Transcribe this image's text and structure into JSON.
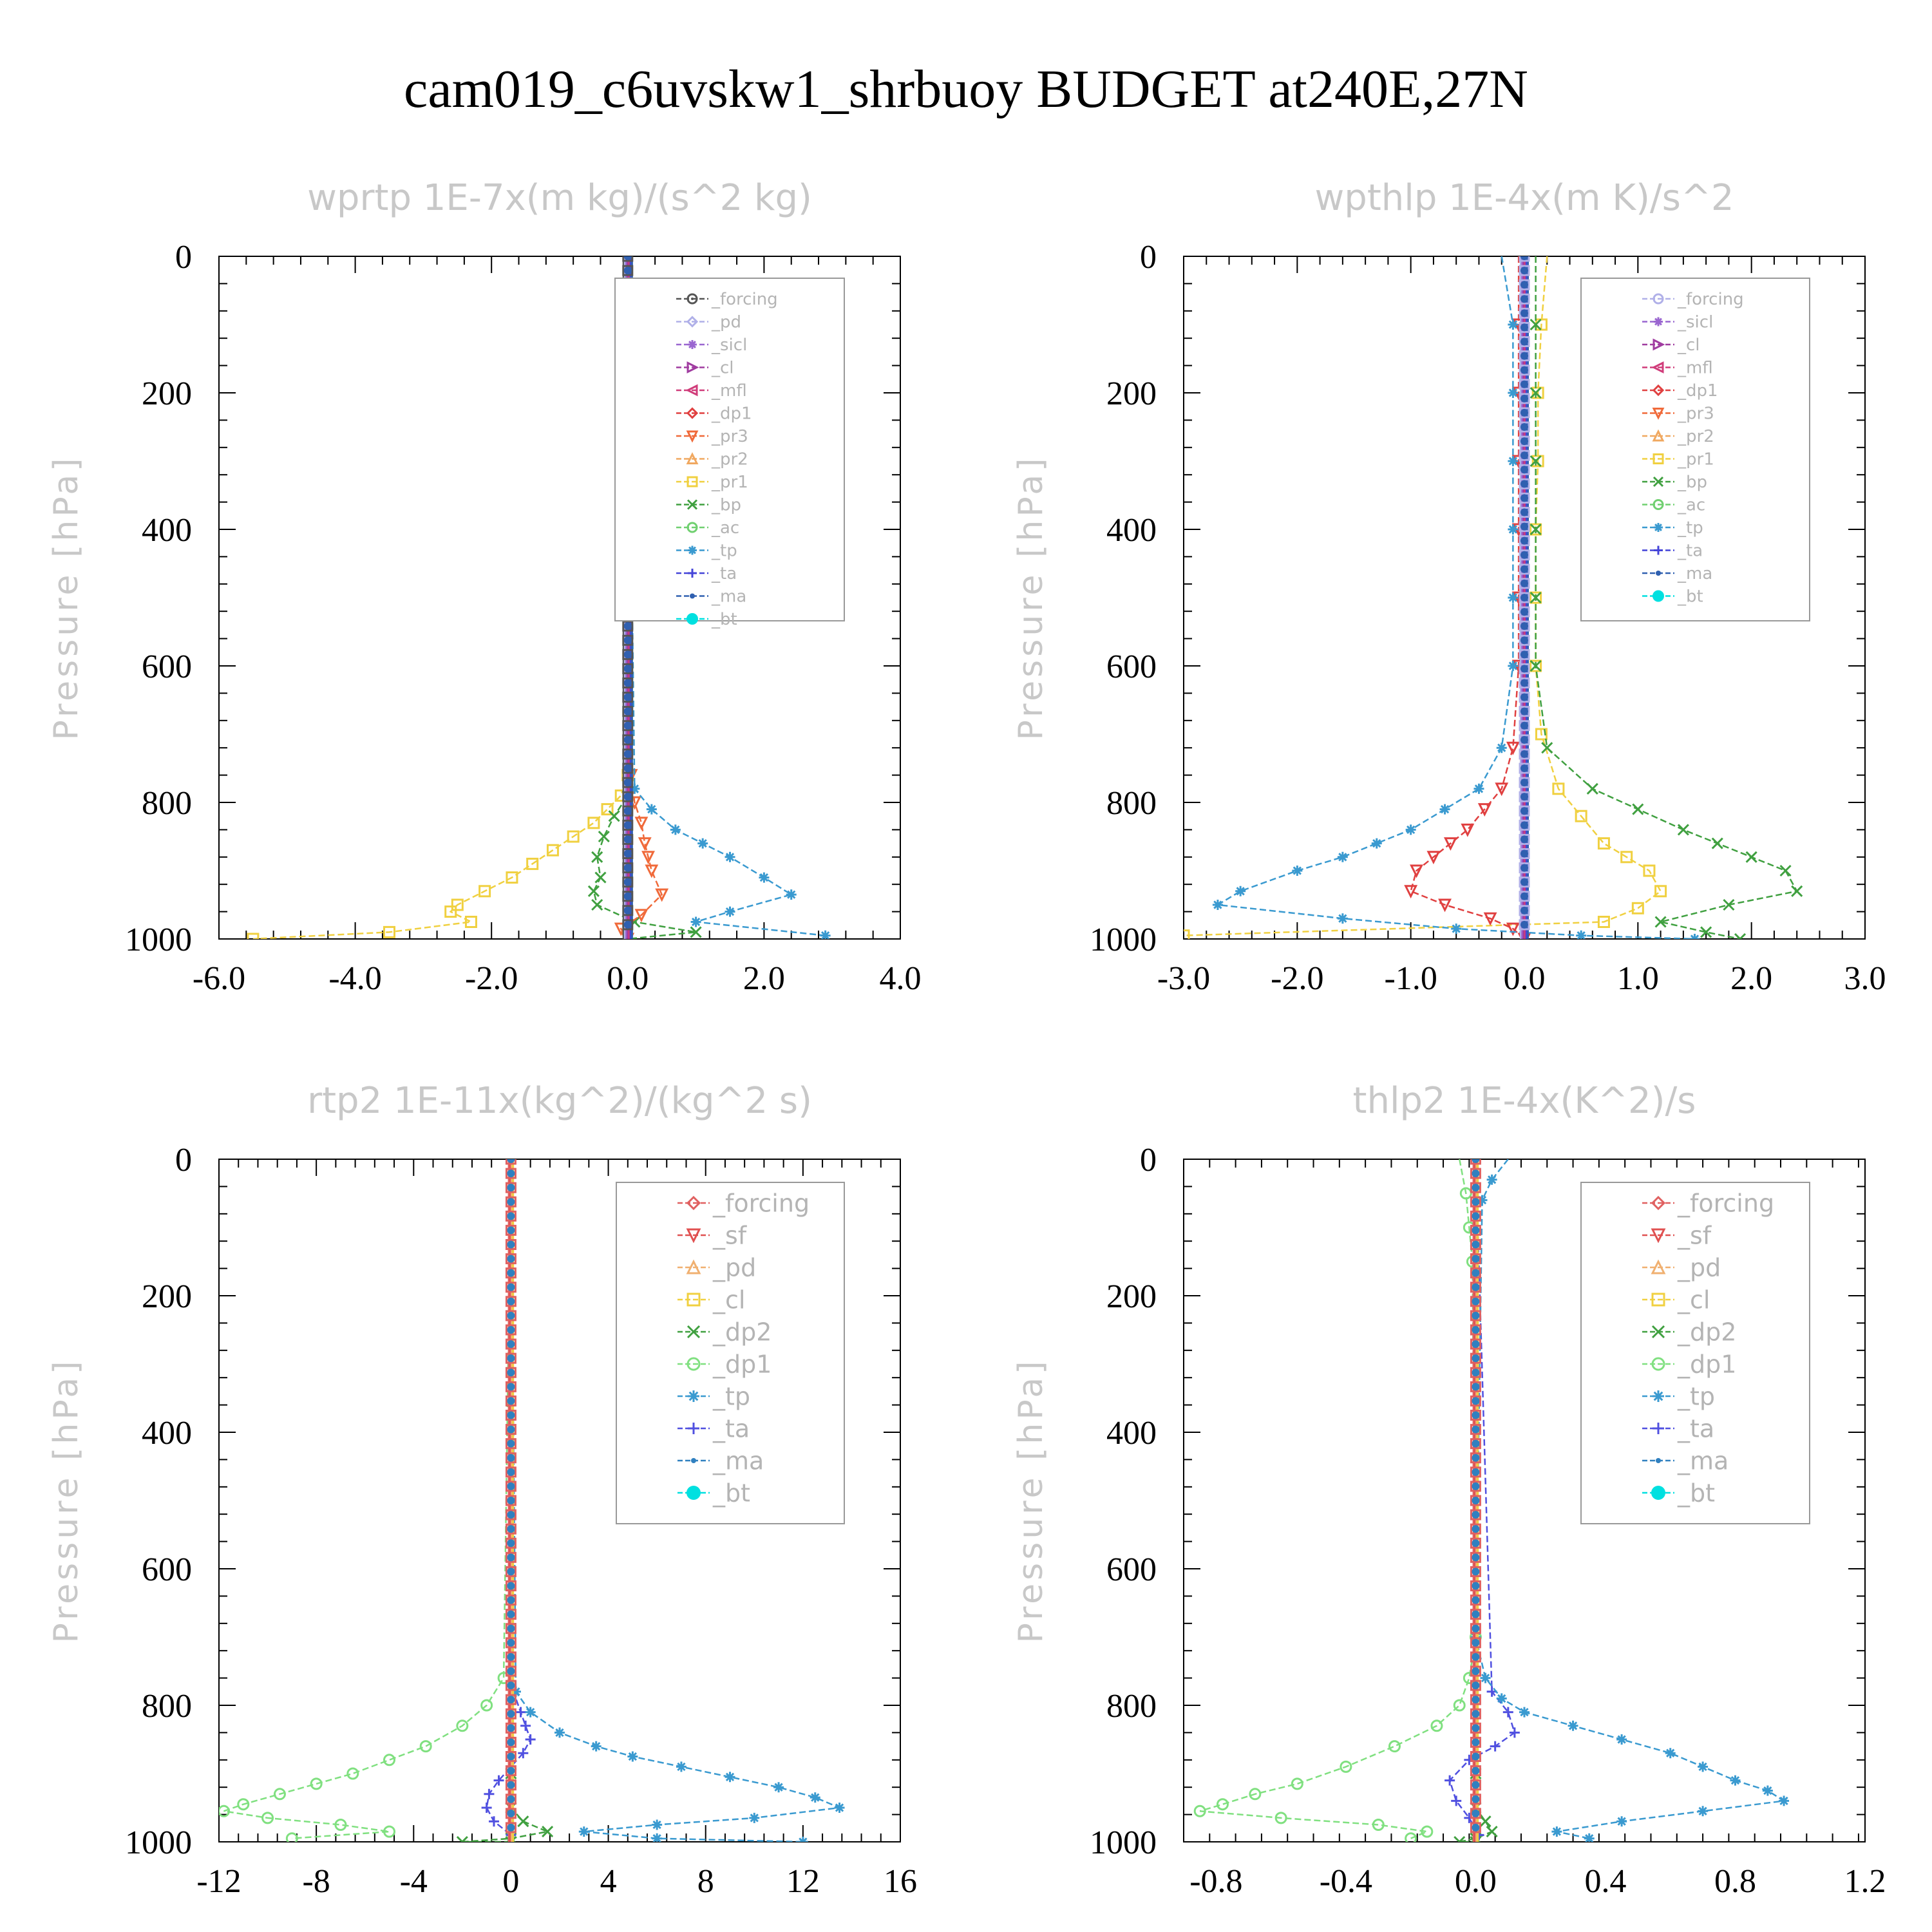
{
  "figure_title": "cam019_c6uvskw1_shrbuoy  BUDGET at240E,27N",
  "colors": {
    "forcing": "#555555",
    "pd": "#b0b0e8",
    "sicl": "#9a66d0",
    "cl": "#a03ca0",
    "mfl": "#d03c7a",
    "dp1": "#e04040",
    "pr3": "#f06a3a",
    "pr2": "#f0a860",
    "pr1": "#f0d040",
    "bp": "#40a040",
    "ac": "#70d070",
    "tp": "#3a9ad0",
    "ta": "#4444d8",
    "ma": "#3060b0",
    "bt": "#00e0e0",
    "forcing2": "#e06060",
    "sf": "#e05050",
    "pd2": "#f0b070",
    "cl2": "#f0d040",
    "dp2": "#40a040",
    "dp1b": "#80e080",
    "tp2": "#3a9ad0",
    "ta2": "#5050e0",
    "ma2": "#3080c0"
  },
  "chart_data": [
    {
      "type": "line",
      "title": "wprtp  1E-7x(m kg)/(s^2 kg)",
      "ylabel": "Pressure [hPa]",
      "xlim": [
        -6.0,
        4.0
      ],
      "ylim": [
        1000,
        0
      ],
      "xticks": [
        "-6.0",
        "-4.0",
        "-2.0",
        "0.0",
        "2.0",
        "4.0"
      ],
      "yticks": [
        "0",
        "200",
        "400",
        "600",
        "800",
        "1000"
      ],
      "legend_position": "top-right",
      "legend": [
        {
          "label": "_forcing",
          "color": "forcing",
          "marker": "circle-dot"
        },
        {
          "label": "_pd",
          "color": "pd",
          "marker": "diamond"
        },
        {
          "label": "_sicl",
          "color": "sicl",
          "marker": "star"
        },
        {
          "label": "_cl",
          "color": "cl",
          "marker": "tri-right"
        },
        {
          "label": "_mfl",
          "color": "mfl",
          "marker": "tri-left"
        },
        {
          "label": "_dp1",
          "color": "dp1",
          "marker": "diamond"
        },
        {
          "label": "_pr3",
          "color": "pr3",
          "marker": "tri-down"
        },
        {
          "label": "_pr2",
          "color": "pr2",
          "marker": "tri-up"
        },
        {
          "label": "_pr1",
          "color": "pr1",
          "marker": "square"
        },
        {
          "label": "_bp",
          "color": "bp",
          "marker": "x"
        },
        {
          "label": "_ac",
          "color": "ac",
          "marker": "circle"
        },
        {
          "label": "_tp",
          "color": "tp",
          "marker": "asterisk"
        },
        {
          "label": "_ta",
          "color": "ta",
          "marker": "plus"
        },
        {
          "label": "_ma",
          "color": "ma",
          "marker": "dot"
        },
        {
          "label": "_bt",
          "color": "bt",
          "marker": "filled-circle"
        }
      ],
      "series": [
        {
          "color": "pr1",
          "marker": "square",
          "x": [
            0,
            0,
            -0.1,
            -0.3,
            -0.5,
            -0.8,
            -1.1,
            -1.4,
            -1.7,
            -2.1,
            -2.5,
            -2.6,
            -2.3,
            -3.5,
            -5.5
          ],
          "y": [
            0,
            760,
            790,
            810,
            830,
            850,
            870,
            890,
            910,
            930,
            950,
            960,
            975,
            990,
            1000
          ]
        },
        {
          "color": "bp",
          "marker": "x",
          "x": [
            0,
            0,
            -0.2,
            -0.35,
            -0.45,
            -0.4,
            -0.5,
            -0.45,
            0.1,
            1.0,
            0
          ],
          "y": [
            0,
            790,
            820,
            850,
            880,
            910,
            930,
            950,
            975,
            990,
            1000
          ]
        },
        {
          "color": "pr3",
          "marker": "tri-down",
          "x": [
            0,
            0.05,
            0.1,
            0.2,
            0.25,
            0.3,
            0.35,
            0.5,
            0.2,
            -0.1,
            0
          ],
          "y": [
            0,
            760,
            800,
            830,
            860,
            880,
            900,
            935,
            965,
            985,
            1000
          ]
        },
        {
          "color": "tp",
          "marker": "asterisk",
          "x": [
            0,
            0.1,
            0.35,
            0.7,
            1.1,
            1.5,
            2.0,
            2.4,
            1.5,
            1.0,
            2.9
          ],
          "y": [
            0,
            780,
            810,
            840,
            860,
            880,
            910,
            935,
            960,
            975,
            995
          ]
        }
      ],
      "zero_stack": {
        "colors": [
          "forcing",
          "pd",
          "sicl",
          "cl",
          "mfl",
          "ta",
          "ma"
        ],
        "marker_color": "ma"
      }
    },
    {
      "type": "line",
      "title": "wpthlp  1E-4x(m K)/s^2",
      "ylabel": "Pressure [hPa]",
      "xlim": [
        -3.0,
        3.0
      ],
      "ylim": [
        1000,
        0
      ],
      "xticks": [
        "-3.0",
        "-2.0",
        "-1.0",
        "0.0",
        "1.0",
        "2.0",
        "3.0"
      ],
      "yticks": [
        "0",
        "200",
        "400",
        "600",
        "800",
        "1000"
      ],
      "legend_position": "top-right",
      "legend": [
        {
          "label": "_forcing",
          "color": "pd",
          "marker": "circle"
        },
        {
          "label": "_sicl",
          "color": "sicl",
          "marker": "star"
        },
        {
          "label": "_cl",
          "color": "cl",
          "marker": "tri-right"
        },
        {
          "label": "_mfl",
          "color": "mfl",
          "marker": "tri-left"
        },
        {
          "label": "_dp1",
          "color": "dp1",
          "marker": "diamond"
        },
        {
          "label": "_pr3",
          "color": "pr3",
          "marker": "tri-down"
        },
        {
          "label": "_pr2",
          "color": "pr2",
          "marker": "tri-up"
        },
        {
          "label": "_pr1",
          "color": "pr1",
          "marker": "square"
        },
        {
          "label": "_bp",
          "color": "bp",
          "marker": "x"
        },
        {
          "label": "_ac",
          "color": "ac",
          "marker": "circle"
        },
        {
          "label": "_tp",
          "color": "tp",
          "marker": "asterisk"
        },
        {
          "label": "_ta",
          "color": "ta",
          "marker": "plus"
        },
        {
          "label": "_ma",
          "color": "ma",
          "marker": "dot"
        },
        {
          "label": "_bt",
          "color": "bt",
          "marker": "filled-circle"
        }
      ],
      "series": [
        {
          "color": "pr1",
          "marker": "square",
          "x": [
            0.2,
            0.15,
            0.12,
            0.12,
            0.1,
            0.1,
            0.1,
            0.15,
            0.3,
            0.5,
            0.7,
            0.9,
            1.1,
            1.2,
            1.0,
            0.7,
            -3.0
          ],
          "y": [
            0,
            100,
            200,
            300,
            400,
            500,
            600,
            700,
            780,
            820,
            860,
            880,
            900,
            930,
            955,
            975,
            995
          ]
        },
        {
          "color": "bp",
          "marker": "x",
          "x": [
            0.1,
            0.1,
            0.1,
            0.1,
            0.1,
            0.1,
            0.1,
            0.2,
            0.6,
            1.0,
            1.4,
            1.7,
            2.0,
            2.3,
            2.4,
            1.8,
            1.2,
            1.6,
            1.9
          ],
          "y": [
            0,
            100,
            200,
            300,
            400,
            500,
            600,
            720,
            780,
            810,
            840,
            860,
            880,
            900,
            930,
            950,
            975,
            990,
            1000
          ]
        },
        {
          "color": "dp1",
          "marker": "tri-down",
          "x": [
            -0.05,
            -0.05,
            -0.05,
            -0.05,
            -0.05,
            -0.05,
            -0.05,
            -0.1,
            -0.2,
            -0.35,
            -0.5,
            -0.65,
            -0.8,
            -0.95,
            -1.0,
            -0.7,
            -0.3,
            -0.1,
            0
          ],
          "y": [
            0,
            100,
            200,
            300,
            400,
            500,
            600,
            720,
            780,
            810,
            840,
            860,
            880,
            900,
            930,
            950,
            970,
            985,
            1000
          ]
        },
        {
          "color": "tp",
          "marker": "asterisk",
          "x": [
            -0.2,
            -0.1,
            -0.1,
            -0.1,
            -0.1,
            -0.1,
            -0.1,
            -0.2,
            -0.4,
            -0.7,
            -1.0,
            -1.3,
            -1.6,
            -2.0,
            -2.5,
            -2.7,
            -1.6,
            -0.6,
            0.5,
            1.5
          ],
          "y": [
            0,
            100,
            200,
            300,
            400,
            500,
            600,
            720,
            780,
            810,
            840,
            860,
            880,
            900,
            930,
            950,
            970,
            985,
            995,
            1000
          ]
        }
      ],
      "zero_stack": {
        "colors": [
          "pd",
          "sicl",
          "cl",
          "mfl",
          "ta",
          "ma"
        ],
        "marker_color": "ma"
      }
    },
    {
      "type": "line",
      "title": "rtp2  1E-11x(kg^2)/(kg^2 s)",
      "ylabel": "Pressure [hPa]",
      "xlim": [
        -12,
        16
      ],
      "ylim": [
        1000,
        0
      ],
      "xticks": [
        "-12",
        "-8",
        "-4",
        "0",
        "4",
        "8",
        "12",
        "16"
      ],
      "yticks": [
        "0",
        "200",
        "400",
        "600",
        "800",
        "1000"
      ],
      "legend_position": "top-right",
      "legend": [
        {
          "label": "_forcing",
          "color": "forcing2",
          "marker": "diamond"
        },
        {
          "label": "_sf",
          "color": "sf",
          "marker": "tri-down"
        },
        {
          "label": "_pd",
          "color": "pd2",
          "marker": "tri-up"
        },
        {
          "label": "_cl",
          "color": "cl2",
          "marker": "square"
        },
        {
          "label": "_dp2",
          "color": "dp2",
          "marker": "x"
        },
        {
          "label": "_dp1",
          "color": "dp1b",
          "marker": "circle"
        },
        {
          "label": "_tp",
          "color": "tp2",
          "marker": "asterisk"
        },
        {
          "label": "_ta",
          "color": "ta2",
          "marker": "plus"
        },
        {
          "label": "_ma",
          "color": "ma2",
          "marker": "dot"
        },
        {
          "label": "_bt",
          "color": "bt",
          "marker": "filled-circle"
        }
      ],
      "series": [
        {
          "color": "dp1b",
          "marker": "circle",
          "x": [
            0,
            -0.3,
            -1,
            -2,
            -3.5,
            -5,
            -6.5,
            -8,
            -9.5,
            -11,
            -11.8,
            -10,
            -7,
            -5,
            -9
          ],
          "y": [
            0,
            760,
            800,
            830,
            860,
            880,
            900,
            915,
            930,
            945,
            955,
            965,
            975,
            985,
            995
          ]
        },
        {
          "color": "dp2",
          "marker": "x",
          "x": [
            0,
            0,
            0,
            0.5,
            1.5,
            0,
            -2,
            0
          ],
          "y": [
            0,
            900,
            950,
            970,
            985,
            995,
            1000,
            1000
          ]
        },
        {
          "color": "ta2",
          "marker": "plus",
          "x": [
            0,
            0.1,
            0.4,
            0.6,
            0.8,
            0.5,
            0,
            -0.5,
            -0.9,
            -1,
            -0.7,
            0
          ],
          "y": [
            0,
            780,
            810,
            830,
            850,
            870,
            890,
            910,
            930,
            950,
            970,
            990
          ]
        },
        {
          "color": "tp2",
          "marker": "asterisk",
          "x": [
            0,
            0.2,
            0.8,
            2,
            3.5,
            5,
            7,
            9,
            11,
            12.5,
            13.5,
            10,
            6,
            3,
            6,
            12
          ],
          "y": [
            0,
            780,
            810,
            840,
            860,
            875,
            890,
            905,
            920,
            935,
            950,
            965,
            975,
            985,
            995,
            1000
          ]
        }
      ],
      "zero_stack": {
        "colors": [
          "forcing2",
          "sf",
          "pd2",
          "cl2"
        ],
        "marker_color": "ma2"
      }
    },
    {
      "type": "line",
      "title": "thlp2  1E-4x(K^2)/s",
      "ylabel": "Pressure [hPa]",
      "xlim": [
        -0.9,
        1.2
      ],
      "ylim": [
        1000,
        0
      ],
      "xticks": [
        "-0.8",
        "-0.4",
        "0.0",
        "0.4",
        "0.8",
        "1.2"
      ],
      "xtick_values": [
        -0.8,
        -0.4,
        0.0,
        0.4,
        0.8,
        1.2
      ],
      "yticks": [
        "0",
        "200",
        "400",
        "600",
        "800",
        "1000"
      ],
      "legend_position": "top-right",
      "legend": [
        {
          "label": "_forcing",
          "color": "forcing2",
          "marker": "diamond"
        },
        {
          "label": "_sf",
          "color": "sf",
          "marker": "tri-down"
        },
        {
          "label": "_pd",
          "color": "pd2",
          "marker": "tri-up"
        },
        {
          "label": "_cl",
          "color": "cl2",
          "marker": "square"
        },
        {
          "label": "_dp2",
          "color": "dp2",
          "marker": "x"
        },
        {
          "label": "_dp1",
          "color": "dp1b",
          "marker": "circle"
        },
        {
          "label": "_tp",
          "color": "tp2",
          "marker": "asterisk"
        },
        {
          "label": "_ta",
          "color": "ta2",
          "marker": "plus"
        },
        {
          "label": "_ma",
          "color": "ma2",
          "marker": "dot"
        },
        {
          "label": "_bt",
          "color": "bt",
          "marker": "filled-circle"
        }
      ],
      "series": [
        {
          "color": "dp1b",
          "marker": "circle",
          "x": [
            -0.05,
            -0.03,
            -0.02,
            -0.01,
            0,
            -0.02,
            -0.05,
            -0.12,
            -0.25,
            -0.4,
            -0.55,
            -0.68,
            -0.78,
            -0.85,
            -0.6,
            -0.3,
            -0.15,
            -0.2
          ],
          "y": [
            0,
            50,
            100,
            150,
            700,
            760,
            800,
            830,
            860,
            890,
            915,
            930,
            945,
            955,
            965,
            975,
            985,
            995
          ]
        },
        {
          "color": "dp2",
          "marker": "x",
          "x": [
            0,
            0,
            0,
            0.03,
            0.05,
            0,
            -0.05,
            0
          ],
          "y": [
            0,
            900,
            950,
            970,
            985,
            995,
            1000,
            1000
          ]
        },
        {
          "color": "ta2",
          "marker": "plus",
          "x": [
            0,
            0.05,
            0.1,
            0.12,
            0.06,
            -0.02,
            -0.08,
            -0.06,
            -0.02,
            0.01
          ],
          "y": [
            0,
            780,
            810,
            840,
            860,
            880,
            910,
            940,
            965,
            990
          ]
        },
        {
          "color": "tp2",
          "marker": "asterisk",
          "x": [
            0.1,
            0.05,
            0.02,
            0,
            0.03,
            0.08,
            0.15,
            0.3,
            0.45,
            0.6,
            0.7,
            0.8,
            0.9,
            0.95,
            0.7,
            0.45,
            0.25,
            0.35
          ],
          "y": [
            0,
            30,
            60,
            700,
            760,
            790,
            810,
            830,
            850,
            870,
            890,
            910,
            925,
            940,
            955,
            970,
            985,
            995
          ]
        }
      ],
      "zero_stack": {
        "colors": [
          "forcing2",
          "sf",
          "pd2",
          "cl2"
        ],
        "marker_color": "ma2"
      }
    }
  ]
}
